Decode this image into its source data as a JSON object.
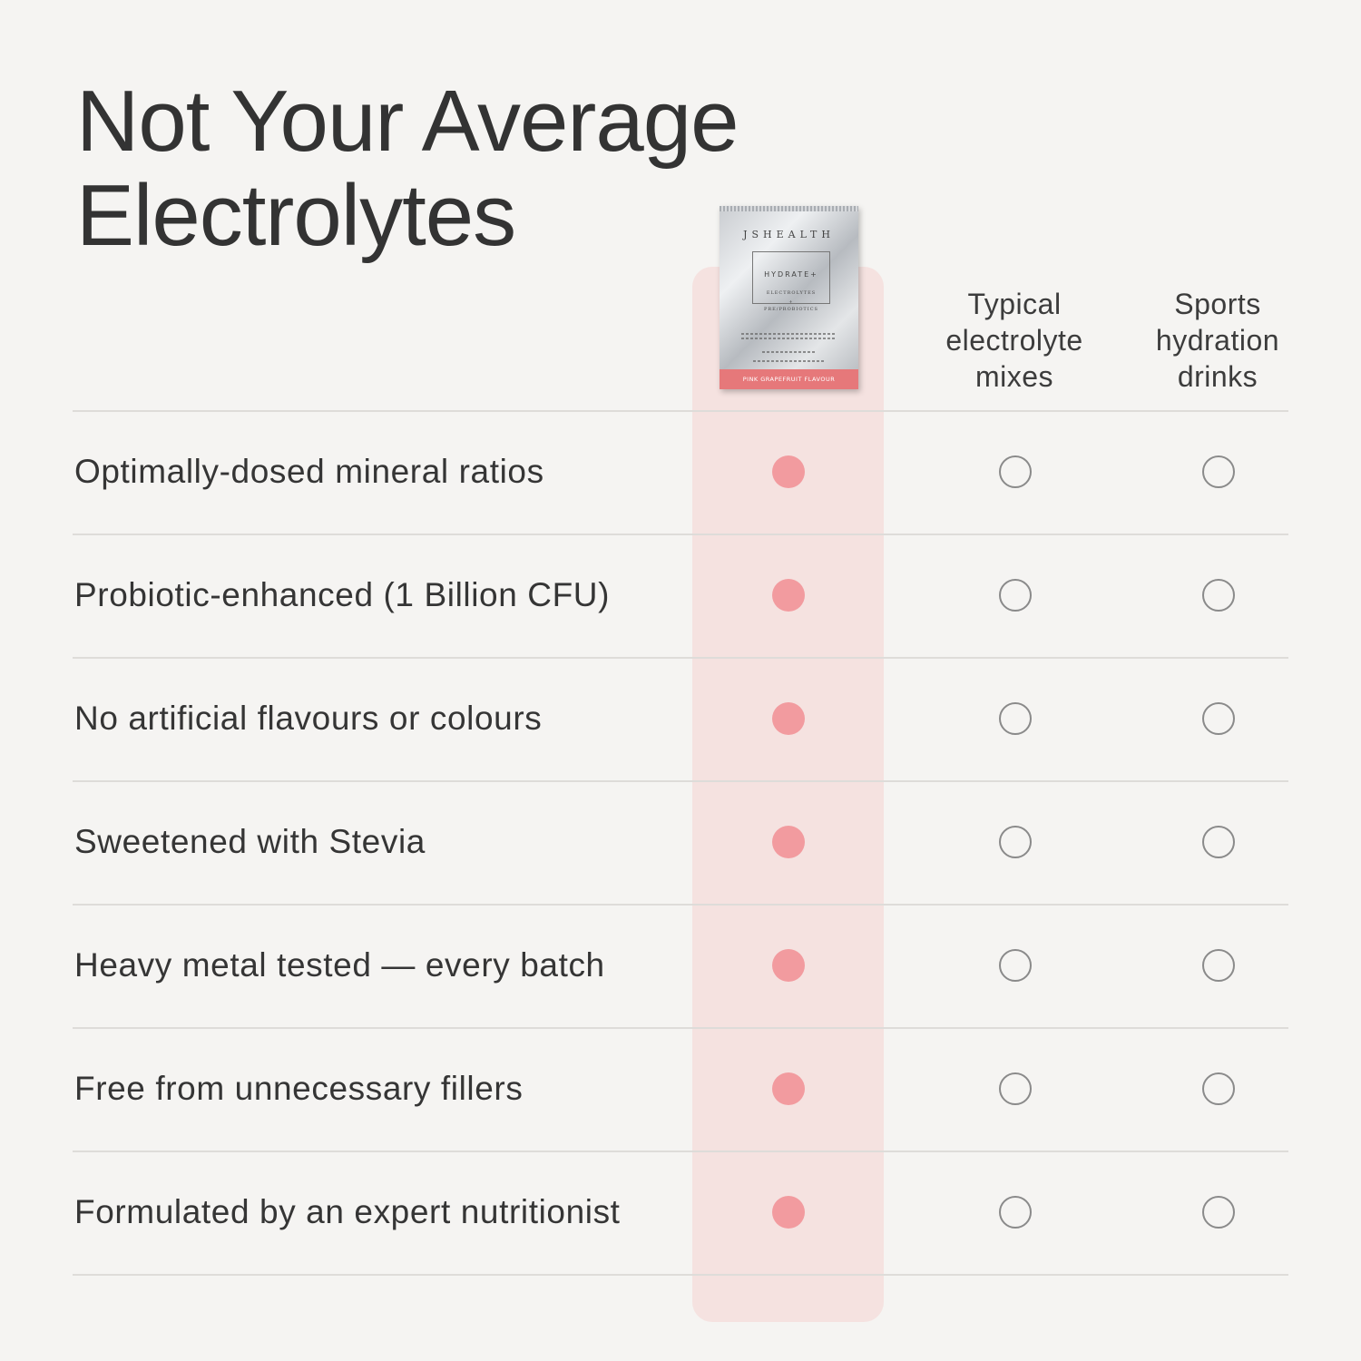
{
  "title": {
    "line1": "Not Your Average",
    "line2": "Electrolytes"
  },
  "product": {
    "brand": "JSHEALTH",
    "name": "HYDRATE+",
    "sub1": "ELECTROLYTES",
    "sub2": "+",
    "sub3": "PRE/PROBIOTICS",
    "flavour": "PINK GRAPEFRUIT FLAVOUR",
    "image_name": "hydrate-sachet-image"
  },
  "columns": [
    "Typical electrolyte mixes",
    "Sports hydration drinks"
  ],
  "colors": {
    "background": "#f5f4f2",
    "highlight": "#f5e2e0",
    "filled_dot": "#f29b9f",
    "empty_dot": "#8a8a8a"
  },
  "rows": [
    {
      "label": "Optimally-dosed mineral ratios",
      "jshealth": true,
      "typical": false,
      "sports": false
    },
    {
      "label": "Probiotic-enhanced (1 Billion CFU)",
      "jshealth": true,
      "typical": false,
      "sports": false
    },
    {
      "label": "No artificial flavours or colours",
      "jshealth": true,
      "typical": false,
      "sports": false
    },
    {
      "label": "Sweetened with Stevia",
      "jshealth": true,
      "typical": false,
      "sports": false
    },
    {
      "label": "Heavy metal tested — every batch",
      "jshealth": true,
      "typical": false,
      "sports": false
    },
    {
      "label": "Free from unnecessary fillers",
      "jshealth": true,
      "typical": false,
      "sports": false
    },
    {
      "label": "Formulated by an expert nutritionist",
      "jshealth": true,
      "typical": false,
      "sports": false
    }
  ]
}
